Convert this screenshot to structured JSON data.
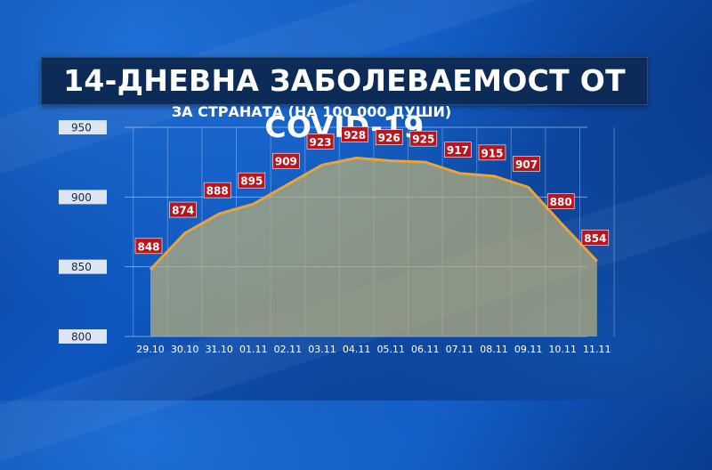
{
  "header": {
    "title": "14-ДНЕВНА ЗАБОЛЕВАЕМОСТ ОТ COVID-19",
    "subtitle": "ЗА СТРАНАТА (НА 100 000 ДУШИ)"
  },
  "colors": {
    "line": "#e8a33a",
    "area": "#b9b07a",
    "label_bg": "#b8151c"
  },
  "chart_data": {
    "type": "area",
    "title": "14-ДНЕВНА ЗАБОЛЕВАЕМОСТ ОТ COVID-19",
    "subtitle": "ЗА СТРАНАТА (НА 100 000 ДУШИ)",
    "categories": [
      "29.10",
      "30.10",
      "31.10",
      "01.11",
      "02.11",
      "03.11",
      "04.11",
      "05.11",
      "06.11",
      "07.11",
      "08.11",
      "09.11",
      "10.11",
      "11.11"
    ],
    "values": [
      848,
      874,
      888,
      895,
      909,
      923,
      928,
      926,
      925,
      917,
      915,
      907,
      880,
      854
    ],
    "yticks": [
      800,
      850,
      900,
      950
    ],
    "ylim": [
      800,
      950
    ],
    "grid": true,
    "xlabel": "",
    "ylabel": ""
  }
}
